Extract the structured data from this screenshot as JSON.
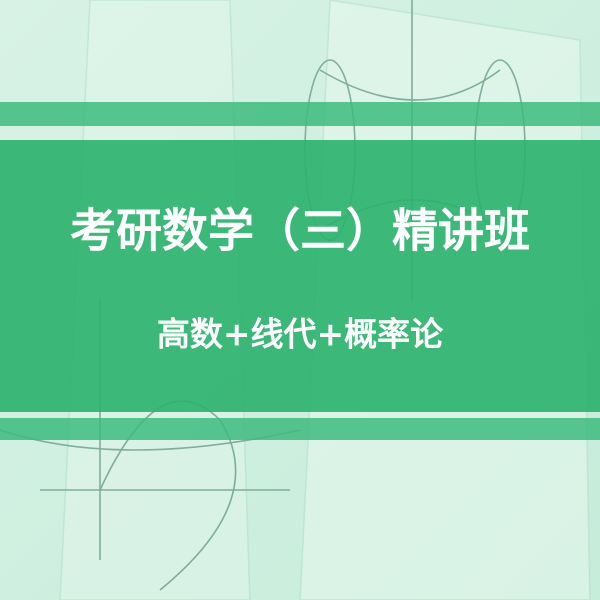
{
  "banner": {
    "title": "考研数学（三）精讲班",
    "subtitle": "高数+线代+概率论"
  }
}
